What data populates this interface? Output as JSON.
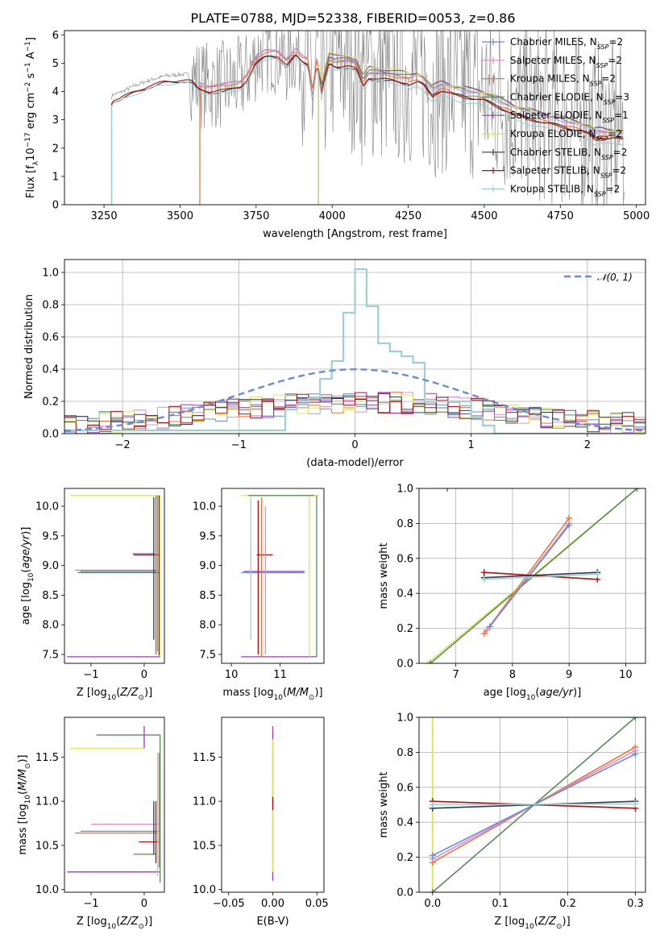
{
  "title": "PLATE=0788, MJD=52338, FIBERID=0053, z=0.86",
  "colors": {
    "chabrier_miles": "#6a8ad8",
    "salpeter_miles": "#e08ccc",
    "kroupa_miles": "#e8783a",
    "chabrier_elodie": "#5a8a5a",
    "salpeter_elodie": "#9a3fb8",
    "kroupa_elodie": "#d8e860",
    "chabrier_stelib": "#2c3e50",
    "salpeter_stelib": "#b01010",
    "kroupa_stelib": "#9fd0d0",
    "data": "#808080",
    "normal": "#6a8ad8"
  },
  "legend": [
    {
      "label": "Chabrier MILES, N",
      "sub": "SSP",
      "tail": "=2",
      "color_key": "chabrier_miles"
    },
    {
      "label": "Salpeter MILES, N",
      "sub": "SSP",
      "tail": "=2",
      "color_key": "salpeter_miles"
    },
    {
      "label": "Kroupa MILES, N",
      "sub": "SSP",
      "tail": "=2",
      "color_key": "kroupa_miles"
    },
    {
      "label": "Chabrier ELODIE, N",
      "sub": "SSP",
      "tail": "=3",
      "color_key": "chabrier_elodie"
    },
    {
      "label": "Salpeter ELODIE, N",
      "sub": "SSP",
      "tail": "=1",
      "color_key": "salpeter_elodie"
    },
    {
      "label": "Kroupa ELODIE, N",
      "sub": "SSP",
      "tail": "=2",
      "color_key": "kroupa_elodie"
    },
    {
      "label": "Chabrier STELIB, N",
      "sub": "SSP",
      "tail": "=2",
      "color_key": "chabrier_stelib"
    },
    {
      "label": "Salpeter STELIB, N",
      "sub": "SSP",
      "tail": "=2",
      "color_key": "salpeter_stelib"
    },
    {
      "label": "Kroupa STELIB, N",
      "sub": "SSP",
      "tail": "=2",
      "color_key": "kroupa_stelib"
    }
  ],
  "chart_data": [
    {
      "id": "spectrum",
      "type": "line",
      "xlabel": "wavelength [Angstrom, rest frame]",
      "ylabel": "Flux [f_λ 10^-17 erg cm^-2 s^-1 A^-1]",
      "xlim": [
        3120,
        5030
      ],
      "ylim": [
        0,
        6.15
      ],
      "xticks": [
        3250,
        3500,
        3750,
        4000,
        4250,
        4500,
        4750,
        5000
      ],
      "yticks": [
        0,
        1,
        2,
        3,
        4,
        5,
        6
      ],
      "data_start": {
        "MILES": 3565,
        "ELODIE": 3955,
        "STELIB": 3275
      },
      "continuum_x": [
        3275,
        3280,
        3300,
        3350,
        3400,
        3450,
        3500,
        3520,
        3540,
        3560,
        3580,
        3600,
        3650,
        3700,
        3720,
        3750,
        3780,
        3800,
        3820,
        3850,
        3880,
        3900,
        3920,
        3935,
        3950,
        3965,
        3975,
        3990,
        4010,
        4050,
        4080,
        4102,
        4120,
        4150,
        4200,
        4250,
        4280,
        4300,
        4330,
        4340,
        4360,
        4400,
        4450,
        4500,
        4550,
        4600,
        4650,
        4700,
        4750,
        4800,
        4850,
        4861,
        4880,
        4900,
        4950
      ],
      "continuum_y": [
        3.8,
        3.9,
        3.95,
        4.2,
        4.4,
        4.55,
        4.6,
        4.6,
        4.55,
        4.3,
        4.25,
        4.2,
        4.25,
        4.4,
        4.6,
        5.2,
        5.45,
        5.5,
        5.45,
        5.1,
        5.5,
        5.3,
        5.2,
        4.0,
        5.2,
        4.1,
        4.6,
        5.2,
        5.1,
        5.1,
        5.0,
        4.4,
        4.7,
        4.65,
        4.6,
        4.5,
        4.6,
        4.5,
        4.1,
        4.2,
        4.3,
        4.15,
        4.05,
        3.95,
        3.7,
        3.45,
        3.3,
        3.15,
        3.05,
        2.9,
        2.75,
        2.6,
        2.65,
        2.6,
        2.6
      ],
      "series": [
        {
          "color_key": "chabrier_miles",
          "start": 3565,
          "offset": 0.0
        },
        {
          "color_key": "salpeter_miles",
          "start": 3565,
          "offset": 0.02
        },
        {
          "color_key": "kroupa_miles",
          "start": 3565,
          "offset": -0.05
        },
        {
          "color_key": "chabrier_elodie",
          "start": 3955,
          "offset": 0.05
        },
        {
          "color_key": "salpeter_elodie",
          "start": 3955,
          "offset": 0.15
        },
        {
          "color_key": "kroupa_elodie",
          "start": 3955,
          "offset": 0.2
        },
        {
          "color_key": "chabrier_stelib",
          "start": 3275,
          "offset": -0.25
        },
        {
          "color_key": "salpeter_stelib",
          "start": 3275,
          "offset": -0.2
        },
        {
          "color_key": "kroupa_stelib",
          "start": 3275,
          "offset": -0.3
        }
      ]
    },
    {
      "id": "residuals",
      "type": "line",
      "xlabel": "(data-model)/error",
      "ylabel": "Normed distribution",
      "xlim": [
        -2.5,
        2.5
      ],
      "ylim": [
        0,
        1.08
      ],
      "xticks": [
        -2,
        -1,
        0,
        1,
        2
      ],
      "yticks": [
        0.0,
        0.2,
        0.4,
        0.6,
        0.8,
        1.0
      ],
      "grid": true,
      "legend": "top-right",
      "normal_label": "𝒩(0, 1)",
      "stelib_edges": [
        -0.6,
        -0.5,
        -0.4,
        -0.3,
        -0.2,
        -0.1,
        0.0,
        0.1,
        0.2,
        0.3,
        0.4,
        0.5,
        0.6,
        0.7,
        0.8,
        0.9,
        1.0,
        1.1,
        1.2
      ],
      "stelib_hist": [
        0.15,
        0.18,
        0.22,
        0.34,
        0.45,
        0.75,
        1.02,
        0.79,
        0.56,
        0.51,
        0.48,
        0.44,
        0.2,
        0.2,
        0.2,
        0.2,
        0.1,
        0.05
      ],
      "bins": {
        "min": -2.5,
        "max": 2.5,
        "width": 0.1
      },
      "noise_levels": [
        0.08,
        0.12,
        0.16,
        0.2,
        0.24
      ]
    },
    {
      "id": "age_vs_Z",
      "type": "scatter",
      "xlabel": "Z [log10(Z/Z☉)]",
      "ylabel": "age  [log10(age/yr)]",
      "xlim": [
        -1.5,
        0.38
      ],
      "ylim": [
        7.35,
        10.3
      ],
      "xticks": [
        -1,
        0
      ],
      "yticks": [
        7.5,
        8.0,
        8.5,
        9.0,
        9.5,
        10.0
      ],
      "xticklabels": [
        "−1",
        "0"
      ],
      "yticklabels": [
        "7.5",
        "8.0",
        "8.5",
        "9.0",
        "9.5",
        "10.0"
      ]
    },
    {
      "id": "age_vs_mass",
      "type": "scatter",
      "xlabel": "mass [log10(M/M☉)]",
      "ylabel": "",
      "xlim": [
        9.8,
        11.9
      ],
      "ylim": [
        7.35,
        10.3
      ],
      "xticks": [
        10,
        11
      ],
      "yticks": [
        7.5,
        8.0,
        8.5,
        9.0,
        9.5,
        10.0
      ]
    },
    {
      "id": "weight_vs_age",
      "type": "line",
      "xlabel": "age  [log10(age/yr)]",
      "ylabel": "mass weight",
      "xlim": [
        6.35,
        10.35
      ],
      "ylim": [
        0,
        1.0
      ],
      "xticks": [
        7,
        8,
        9,
        10
      ],
      "yticks": [
        0.0,
        0.2,
        0.4,
        0.6,
        0.8,
        1.0
      ],
      "grid": true
    },
    {
      "id": "mass_vs_Z",
      "type": "scatter",
      "xlabel": "Z [log10(Z/Z☉)]",
      "ylabel": "mass [log10(M/M☉)]",
      "xlim": [
        -1.5,
        0.38
      ],
      "ylim": [
        9.97,
        11.95
      ],
      "xticks": [
        -1,
        0
      ],
      "yticks": [
        10.0,
        10.5,
        11.0,
        11.5
      ]
    },
    {
      "id": "mass_vs_ebv",
      "type": "scatter",
      "xlabel": "E(B-V)",
      "ylabel": "",
      "xlim": [
        -0.058,
        0.058
      ],
      "ylim": [
        9.97,
        11.95
      ],
      "xticks": [
        -0.05,
        0,
        0.05
      ],
      "xticklabels": [
        "−0.05",
        "0.00",
        "0.05"
      ],
      "yticks": [
        10.0,
        10.5,
        11.0,
        11.5
      ]
    },
    {
      "id": "weight_vs_Z",
      "type": "line",
      "xlabel": "Z [log10(Z/Z☉)]",
      "ylabel": "mass weight",
      "xlim": [
        -0.02,
        0.315
      ],
      "ylim": [
        0,
        1.0
      ],
      "xticks": [
        0.0,
        0.1,
        0.2,
        0.3
      ],
      "yticks": [
        0.0,
        0.2,
        0.4,
        0.6,
        0.8,
        1.0
      ],
      "grid": true
    }
  ],
  "fits": {
    "age_Z_hlines": [
      {
        "y": 10.18,
        "x0": -1.4,
        "x1": 0.3,
        "c": "kroupa_elodie"
      },
      {
        "y": 9.18,
        "x0": -0.2,
        "x1": 0.28,
        "c": "salpeter_stelib"
      },
      {
        "y": 9.2,
        "x0": -0.22,
        "x1": 0.2,
        "c": "chabrier_miles"
      },
      {
        "y": 8.92,
        "x0": -1.3,
        "x1": 0.25,
        "c": "kroupa_miles"
      },
      {
        "y": 8.9,
        "x0": -1.2,
        "x1": 0.22,
        "c": "chabrier_miles"
      },
      {
        "y": 8.88,
        "x0": -1.25,
        "x1": 0.3,
        "c": "chabrier_elodie"
      },
      {
        "y": 7.46,
        "x0": -1.45,
        "x1": 0.3,
        "c": "salpeter_elodie"
      }
    ],
    "age_Z_vlines": [
      {
        "x": 0.18,
        "y0": 7.75,
        "y1": 10.15,
        "c": "chabrier_stelib"
      },
      {
        "x": 0.22,
        "y0": 7.5,
        "y1": 10.18,
        "c": "chabrier_elodie"
      },
      {
        "x": 0.25,
        "y0": 7.55,
        "y1": 10.18,
        "c": "kroupa_miles"
      },
      {
        "x": 0.28,
        "y0": 7.48,
        "y1": 10.18,
        "c": "salpeter_stelib"
      },
      {
        "x": 0.3,
        "y0": 7.46,
        "y1": 10.18,
        "c": "kroupa_elodie"
      }
    ],
    "age_mass_hlines": [
      {
        "y": 10.18,
        "x0": 10.2,
        "x1": 11.8,
        "c": "kroupa_elodie"
      },
      {
        "y": 10.18,
        "x0": 10.35,
        "x1": 11.7,
        "c": "chabrier_elodie"
      },
      {
        "y": 9.18,
        "x0": 10.52,
        "x1": 10.85,
        "c": "salpeter_stelib"
      },
      {
        "y": 8.9,
        "x0": 10.25,
        "x1": 11.5,
        "c": "salpeter_elodie"
      },
      {
        "y": 8.88,
        "x0": 10.2,
        "x1": 11.5,
        "c": "chabrier_miles"
      },
      {
        "y": 7.46,
        "x0": 10.2,
        "x1": 11.75,
        "c": "salpeter_elodie"
      }
    ],
    "age_mass_vlines": [
      {
        "x": 10.4,
        "y0": 7.75,
        "y1": 10.15,
        "c": "kroupa_stelib"
      },
      {
        "x": 10.55,
        "y0": 7.5,
        "y1": 10.1,
        "c": "salpeter_stelib"
      },
      {
        "x": 10.62,
        "y0": 7.45,
        "y1": 10.15,
        "c": "kroupa_miles"
      },
      {
        "x": 10.7,
        "y0": 7.5,
        "y1": 10.0,
        "c": "salpeter_miles"
      },
      {
        "x": 11.6,
        "y0": 7.46,
        "y1": 10.18,
        "c": "kroupa_elodie"
      },
      {
        "x": 11.75,
        "y0": 7.46,
        "y1": 10.18,
        "c": "chabrier_elodie"
      }
    ],
    "w_age_lines": [
      {
        "a": [
          6.5,
          0.0
        ],
        "b": [
          10.2,
          1.0
        ],
        "c": "kroupa_elodie",
        "marks": true
      },
      {
        "a": [
          6.55,
          0.0
        ],
        "b": [
          10.2,
          1.0
        ],
        "c": "chabrier_elodie",
        "marks": true
      },
      {
        "a": [
          7.5,
          0.17
        ],
        "b": [
          9.0,
          0.83
        ],
        "c": "kroupa_miles",
        "marks": true
      },
      {
        "a": [
          7.55,
          0.19
        ],
        "b": [
          9.0,
          0.8
        ],
        "c": "salpeter_miles",
        "marks": true
      },
      {
        "a": [
          7.6,
          0.21
        ],
        "b": [
          9.0,
          0.79
        ],
        "c": "chabrier_miles",
        "marks": true
      },
      {
        "a": [
          7.5,
          0.52
        ],
        "b": [
          9.5,
          0.48
        ],
        "c": "salpeter_stelib",
        "marks": true
      },
      {
        "a": [
          7.5,
          0.49
        ],
        "b": [
          9.5,
          0.52
        ],
        "c": "chabrier_stelib",
        "marks": true
      },
      {
        "a": [
          7.5,
          0.48
        ],
        "b": [
          9.5,
          0.51
        ],
        "c": "kroupa_stelib",
        "marks": true
      }
    ],
    "w_age_points": [
      {
        "x": 6.85,
        "y": 1.0,
        "c": "salpeter_elodie"
      }
    ],
    "mass_Z_hlines": [
      {
        "y": 11.75,
        "x0": -0.9,
        "x1": 0.3,
        "c": "chabrier_elodie"
      },
      {
        "y": 11.6,
        "x0": -1.4,
        "x1": 0.0,
        "c": "kroupa_elodie"
      },
      {
        "y": 10.74,
        "x0": -1.0,
        "x1": 0.28,
        "c": "salpeter_miles"
      },
      {
        "y": 10.66,
        "x0": -1.2,
        "x1": 0.27,
        "c": "chabrier_miles"
      },
      {
        "y": 10.64,
        "x0": -1.3,
        "x1": 0.25,
        "c": "kroupa_miles"
      },
      {
        "y": 10.54,
        "x0": -0.1,
        "x1": 0.28,
        "c": "salpeter_stelib"
      },
      {
        "y": 10.4,
        "x0": -0.2,
        "x1": 0.22,
        "c": "chabrier_elodie"
      },
      {
        "y": 10.2,
        "x0": -1.45,
        "x1": 0.3,
        "c": "salpeter_elodie"
      }
    ],
    "mass_Z_vlines": [
      {
        "x": 0.0,
        "y0": 11.6,
        "y1": 11.85,
        "c": "salpeter_elodie"
      },
      {
        "x": 0.18,
        "y0": 10.4,
        "y1": 11.0,
        "c": "chabrier_stelib"
      },
      {
        "x": 0.22,
        "y0": 10.3,
        "y1": 11.0,
        "c": "salpeter_stelib"
      },
      {
        "x": 0.25,
        "y0": 10.15,
        "y1": 11.55,
        "c": "kroupa_stelib"
      },
      {
        "x": 0.28,
        "y0": 10.25,
        "y1": 11.55,
        "c": "kroupa_miles"
      },
      {
        "x": 0.3,
        "y0": 10.08,
        "y1": 11.75,
        "c": "chabrier_elodie"
      }
    ],
    "mass_ebv_vlines": [
      {
        "x": 0.0,
        "y0": 10.1,
        "y1": 11.85,
        "c": "salpeter_elodie"
      },
      {
        "x": 0.0,
        "y0": 10.2,
        "y1": 11.7,
        "c": "kroupa_elodie"
      },
      {
        "x": 0.0,
        "y0": 10.9,
        "y1": 11.05,
        "c": "salpeter_stelib"
      }
    ],
    "w_Z_lines": [
      {
        "a": [
          0.0,
          0.0
        ],
        "b": [
          0.3,
          1.0
        ],
        "c": "chabrier_elodie",
        "marks": true
      },
      {
        "a": [
          0.0,
          0.17
        ],
        "b": [
          0.3,
          0.83
        ],
        "c": "kroupa_miles",
        "marks": true
      },
      {
        "a": [
          0.0,
          0.19
        ],
        "b": [
          0.3,
          0.81
        ],
        "c": "salpeter_miles",
        "marks": true
      },
      {
        "a": [
          0.0,
          0.21
        ],
        "b": [
          0.3,
          0.79
        ],
        "c": "chabrier_miles",
        "marks": true
      },
      {
        "a": [
          0.0,
          0.52
        ],
        "b": [
          0.3,
          0.48
        ],
        "c": "salpeter_stelib",
        "marks": true
      },
      {
        "a": [
          0.0,
          0.48
        ],
        "b": [
          0.3,
          0.52
        ],
        "c": "chabrier_stelib",
        "marks": true
      },
      {
        "a": [
          0.0,
          0.5
        ],
        "b": [
          0.3,
          0.505
        ],
        "c": "kroupa_stelib",
        "marks": true
      }
    ],
    "w_Z_vlines": [
      {
        "x": 0.0,
        "y0": 0.0,
        "y1": 1.0,
        "c": "kroupa_elodie"
      }
    ]
  }
}
